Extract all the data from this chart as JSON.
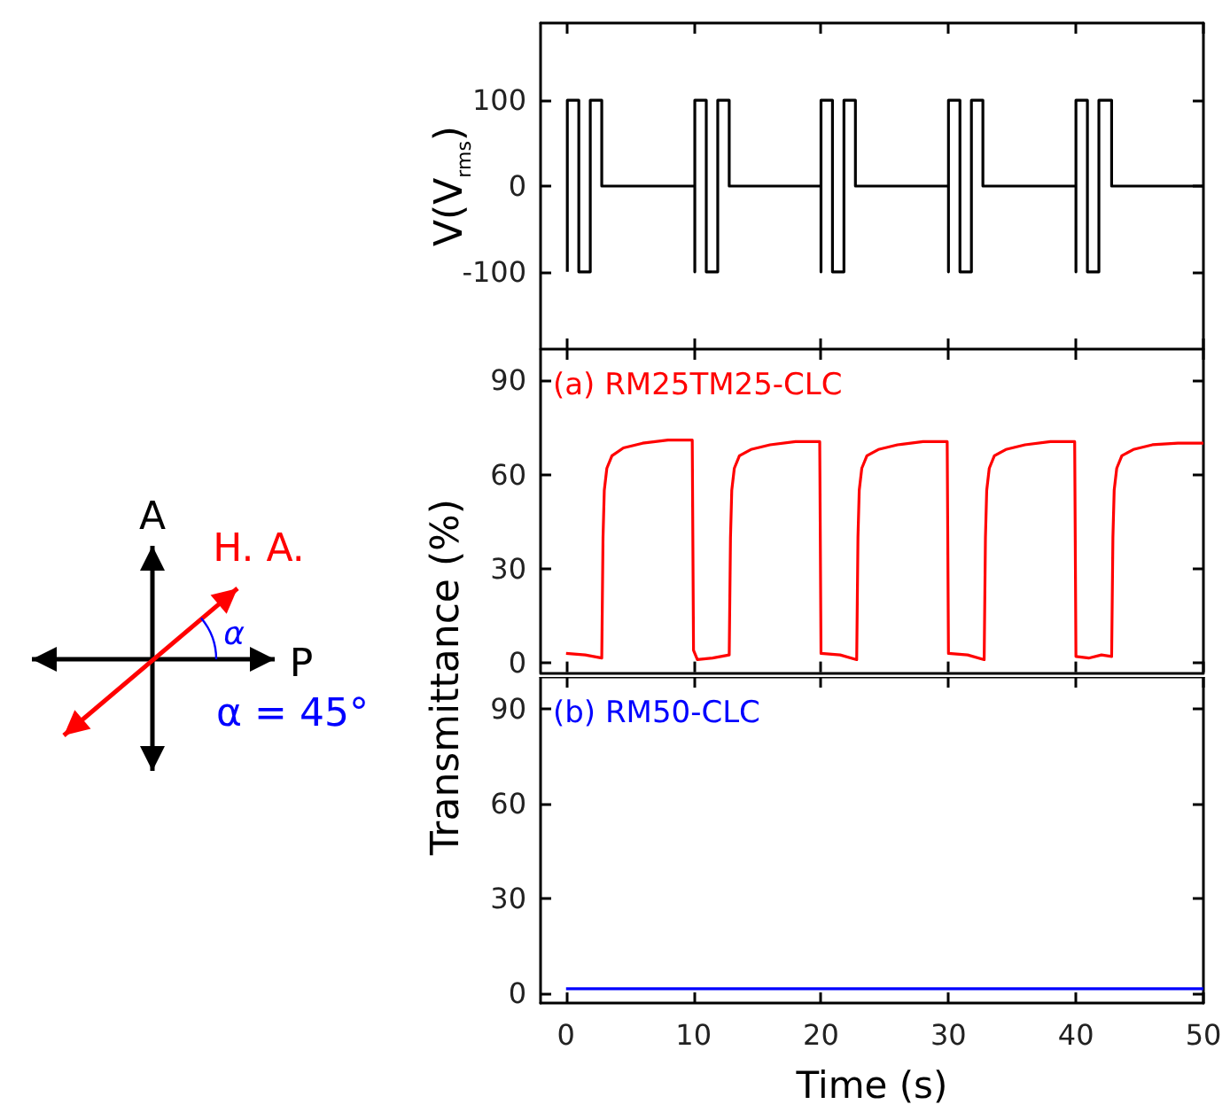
{
  "chart_data": [
    {
      "type": "line",
      "ylabel": "V(V$_{rms}$)",
      "xlim": [
        -2,
        50
      ],
      "xticks": [
        0,
        10,
        20,
        30,
        40,
        50
      ],
      "ylim": [
        -190,
        190
      ],
      "yticks": [
        -100,
        0,
        100
      ],
      "tick_labels": "y",
      "grid": false,
      "marker": "none",
      "series": [
        {
          "color": "#000000",
          "x": [
            0.1,
            0.1,
            1.0,
            1.0,
            1.9,
            1.9,
            2.8,
            2.8,
            10.1,
            10.1,
            10.1,
            11.0,
            11.0,
            11.9,
            11.9,
            12.8,
            12.8,
            20.0,
            20.0,
            20.0,
            20.9,
            20.9,
            21.8,
            21.8,
            22.7,
            22.7,
            30.0,
            30.0,
            30.0,
            30.9,
            30.9,
            31.8,
            31.8,
            32.7,
            32.7,
            40.0,
            40.0,
            40.0,
            40.9,
            40.9,
            41.8,
            41.8,
            42.8,
            42.8,
            50
          ],
          "values": [
            -100,
            100,
            100,
            -100,
            -100,
            100,
            100,
            0,
            0,
            -100,
            100,
            100,
            -100,
            -100,
            100,
            100,
            0,
            0,
            -100,
            100,
            100,
            -100,
            -100,
            100,
            100,
            0,
            0,
            -100,
            100,
            100,
            -100,
            -100,
            100,
            100,
            0,
            0,
            -100,
            100,
            100,
            -100,
            -100,
            100,
            100,
            0,
            0
          ]
        }
      ]
    },
    {
      "type": "line",
      "ylabel": "Transmittance (%)",
      "xlim": [
        -2,
        50
      ],
      "xticks": [
        0,
        10,
        20,
        30,
        40,
        50
      ],
      "ylim": [
        -3,
        100
      ],
      "yticks": [
        0,
        30,
        60,
        90
      ],
      "tick_labels": "y",
      "grid": false,
      "marker": "none",
      "series": [
        {
          "name": "(a) RM25TM25-CLC",
          "color": "#ff0000",
          "x": [
            0,
            1.5,
            2.8,
            2.9,
            3.0,
            3.2,
            3.6,
            4.5,
            6,
            8,
            9.9,
            10.0,
            10.3,
            11.5,
            12.8,
            12.9,
            13.0,
            13.2,
            13.6,
            14.5,
            16,
            18,
            19.9,
            20.0,
            21.5,
            22.8,
            22.9,
            23.0,
            23.2,
            23.6,
            24.5,
            26,
            28,
            29.9,
            30.0,
            31.5,
            32.8,
            32.9,
            33.0,
            33.2,
            33.6,
            34.5,
            36,
            38,
            39.9,
            40.0,
            41,
            42,
            42.8,
            42.9,
            43.0,
            43.2,
            43.6,
            44.5,
            46,
            48,
            50
          ],
          "values": [
            3,
            2.5,
            1.5,
            40,
            55,
            62,
            66,
            68.5,
            70,
            71,
            71,
            4,
            1,
            1.5,
            2.5,
            40,
            55,
            62,
            66,
            68,
            69.5,
            70.5,
            70.5,
            3,
            2.5,
            1,
            40,
            55,
            62,
            66,
            68,
            69.5,
            70.5,
            70.5,
            3,
            2.5,
            1,
            40,
            55,
            62,
            66,
            68,
            69.5,
            70.5,
            70.5,
            2,
            1.5,
            2.5,
            2,
            40,
            55,
            62,
            66,
            68,
            69.5,
            70,
            70
          ]
        }
      ]
    },
    {
      "type": "line",
      "xlabel": "Time (s)",
      "xlim": [
        -2,
        50
      ],
      "xticks": [
        0,
        10,
        20,
        30,
        40,
        50
      ],
      "ylim": [
        -3,
        100
      ],
      "yticks": [
        0,
        30,
        60,
        90
      ],
      "grid": false,
      "marker": "none",
      "series": [
        {
          "name": "(b) RM50-CLC",
          "color": "#0000ff",
          "x": [
            0,
            10,
            20,
            30,
            40,
            50
          ],
          "values": [
            1.5,
            1.5,
            1.5,
            1.5,
            1.5,
            1.5
          ]
        }
      ]
    },
    {
      "type": "other",
      "annotations": [
        "A",
        "H. A.",
        "P",
        "α",
        "α = 45°"
      ]
    }
  ]
}
